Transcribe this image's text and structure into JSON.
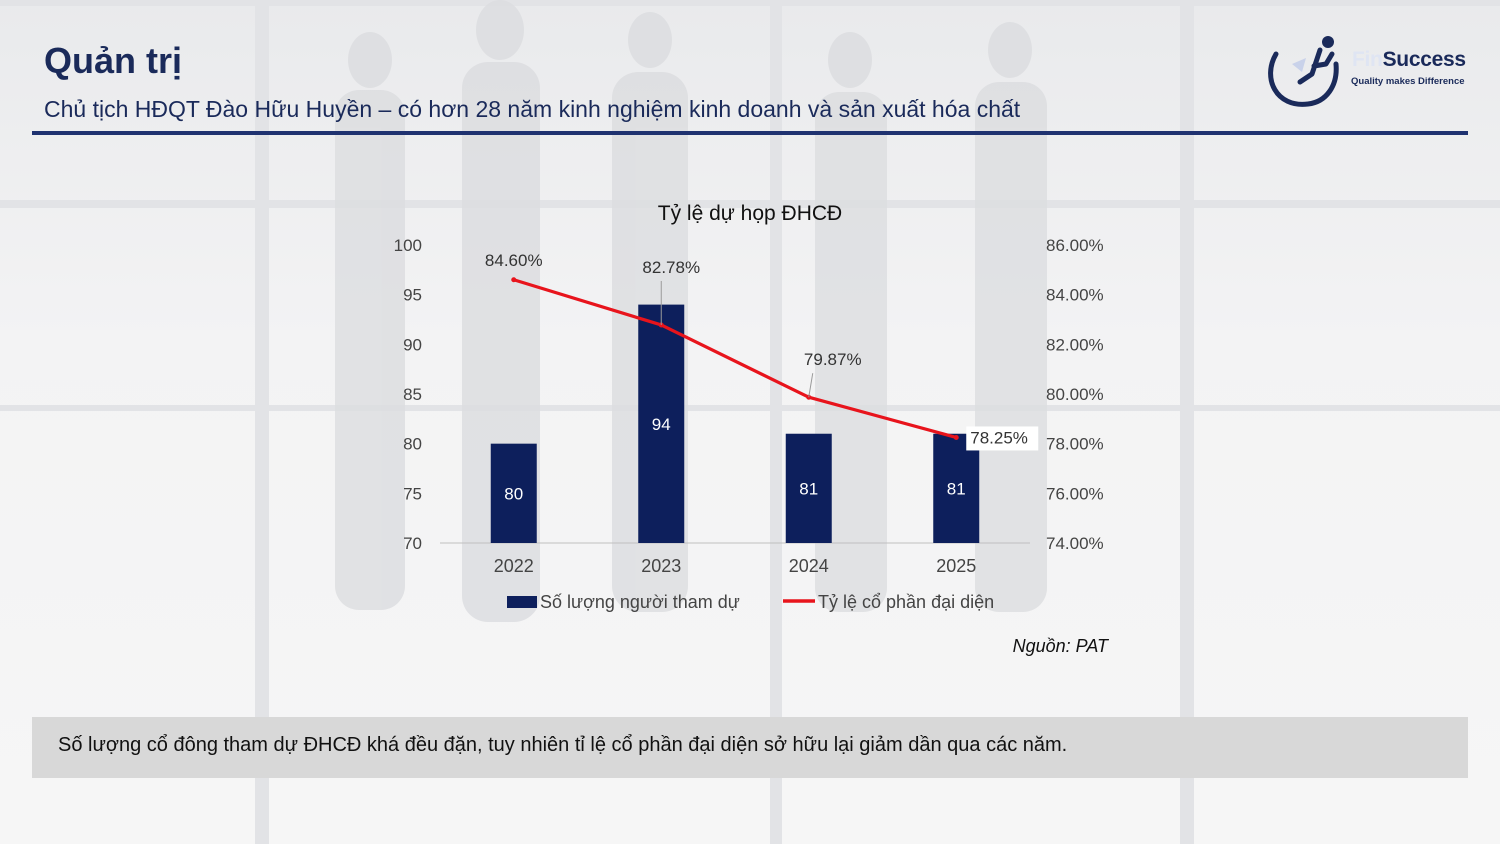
{
  "page": {
    "title": "Quản trị",
    "subtitle": "Chủ tịch HĐQT Đào Hữu Huyền – có hơn 28 năm kinh nghiệm kinh doanh và sản xuất hóa chất"
  },
  "logo": {
    "brand_prefix": "Fin",
    "brand_suffix": "Success",
    "tagline": "Quality makes Difference",
    "icon": "runner-swoosh-icon"
  },
  "colors": {
    "title": "#1a2a5a",
    "bar": "#0d1f5c",
    "line": "#e8141c",
    "rule": "#1f3270",
    "panel": "#d8d8d8"
  },
  "chart_data": {
    "type": "bar",
    "title": "Tỷ lệ dự họp ĐHCĐ",
    "categories": [
      "2022",
      "2023",
      "2024",
      "2025"
    ],
    "series": [
      {
        "name": "Số lượng người tham dự",
        "kind": "bar",
        "axis": "left",
        "values": [
          80,
          94,
          81,
          81
        ],
        "labels": [
          "80",
          "94",
          "81",
          "81"
        ]
      },
      {
        "name": "Tỷ lệ cổ phần đại diện",
        "kind": "line",
        "axis": "right",
        "values": [
          84.6,
          82.78,
          79.87,
          78.25
        ],
        "labels": [
          "84.60%",
          "82.78%",
          "79.87%",
          "78.25%"
        ]
      }
    ],
    "y_left": {
      "min": 70,
      "max": 100,
      "ticks": [
        "70",
        "75",
        "80",
        "85",
        "90",
        "95",
        "100"
      ]
    },
    "y_right": {
      "min": 74,
      "max": 86,
      "ticks": [
        "74.00%",
        "76.00%",
        "78.00%",
        "80.00%",
        "82.00%",
        "84.00%",
        "86.00%"
      ]
    },
    "legend_position": "bottom",
    "grid": false
  },
  "source": "Nguồn: PAT",
  "conclusion": "Số lượng cổ đông tham dự ĐHCĐ khá đều đặn, tuy nhiên tỉ lệ cổ phần đại diện sở hữu lại giảm dần qua các năm."
}
